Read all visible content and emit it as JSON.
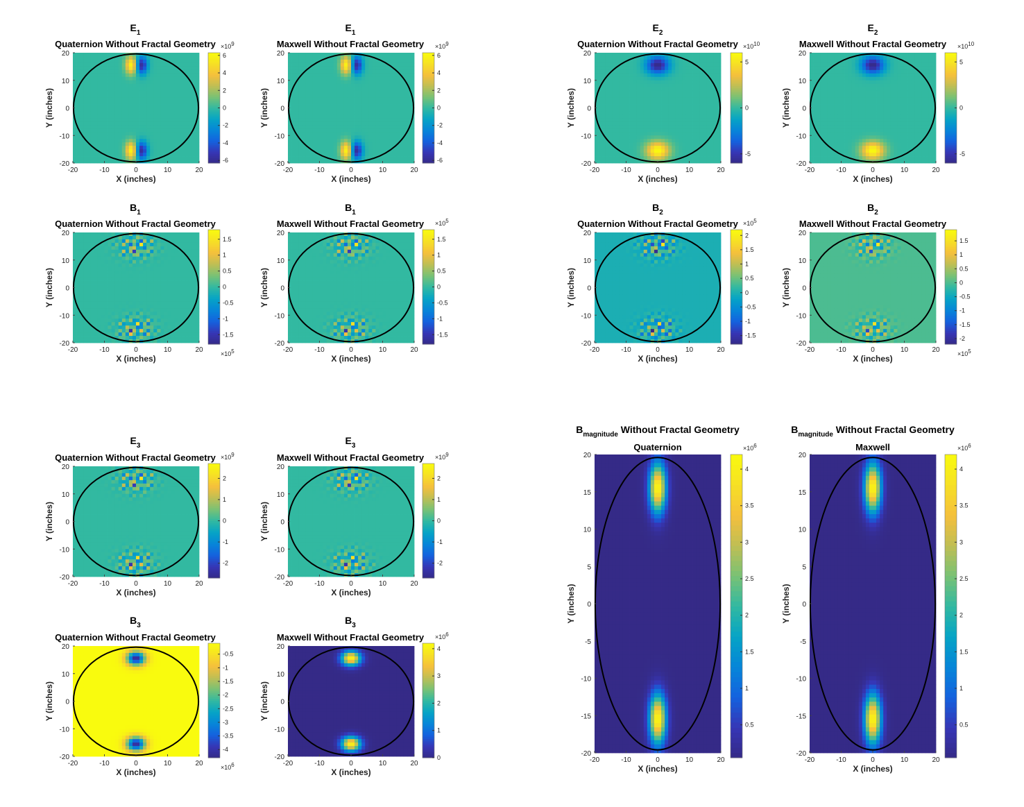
{
  "chart_data": [
    {
      "type": "heatmap",
      "id": "E1-Q",
      "name": "E",
      "sub": "1",
      "line2": "Quaternion Without Fractal Geometry",
      "xlabel": "X (inches)",
      "ylabel": "Y (inches)",
      "xlim": [
        -20,
        20
      ],
      "ylim": [
        -20,
        20
      ],
      "x_ticks": [
        "-20",
        "-10",
        "0",
        "10",
        "20"
      ],
      "y_ticks": [
        "-20",
        "-10",
        "0",
        "10",
        "20"
      ],
      "colorbar": {
        "ticks": [
          "-6",
          "-4",
          "-2",
          "0",
          "2",
          "4",
          "6"
        ],
        "multiplier": "×10",
        "exponent": "9",
        "range": [
          -6.3,
          6.3
        ]
      },
      "field": "dipole-x"
    },
    {
      "type": "heatmap",
      "id": "E1-M",
      "name": "E",
      "sub": "1",
      "line2": "Maxwell Without Fractal Geometry",
      "xlabel": "X (inches)",
      "ylabel": "Y (inches)",
      "xlim": [
        -20,
        20
      ],
      "ylim": [
        -20,
        20
      ],
      "x_ticks": [
        "-20",
        "-10",
        "0",
        "10",
        "20"
      ],
      "y_ticks": [
        "-20",
        "-10",
        "0",
        "10",
        "20"
      ],
      "colorbar": {
        "ticks": [
          "-6",
          "-4",
          "-2",
          "0",
          "2",
          "4",
          "6"
        ],
        "multiplier": "×10",
        "exponent": "9",
        "range": [
          -6.3,
          6.3
        ]
      },
      "field": "dipole-x"
    },
    {
      "type": "heatmap",
      "id": "E2-Q",
      "name": "E",
      "sub": "2",
      "line2": "Quaternion Without Fractal Geometry",
      "xlabel": "X (inches)",
      "ylabel": "Y (inches)",
      "xlim": [
        -20,
        20
      ],
      "ylim": [
        -20,
        20
      ],
      "x_ticks": [
        "-20",
        "-10",
        "0",
        "10",
        "20"
      ],
      "y_ticks": [
        "-20",
        "-10",
        "0",
        "10",
        "20"
      ],
      "colorbar": {
        "ticks": [
          "-5",
          "0",
          "5"
        ],
        "multiplier": "×10",
        "exponent": "10",
        "range": [
          -6,
          6
        ]
      },
      "field": "blob-top-neg"
    },
    {
      "type": "heatmap",
      "id": "E2-M",
      "name": "E",
      "sub": "2",
      "line2": "Maxwell Without Fractal Geometry",
      "xlabel": "X (inches)",
      "ylabel": "Y (inches)",
      "xlim": [
        -20,
        20
      ],
      "ylim": [
        -20,
        20
      ],
      "x_ticks": [
        "-20",
        "-10",
        "0",
        "10",
        "20"
      ],
      "y_ticks": [
        "-20",
        "-10",
        "0",
        "10",
        "20"
      ],
      "colorbar": {
        "ticks": [
          "-5",
          "0",
          "5"
        ],
        "multiplier": "×10",
        "exponent": "10",
        "range": [
          -6,
          6
        ]
      },
      "field": "blob-top-neg"
    },
    {
      "type": "heatmap",
      "id": "B1-Q",
      "name": "B",
      "sub": "1",
      "line2": "Quaternion Without Fractal Geometry",
      "xlabel": "X (inches)",
      "ylabel": "Y (inches)",
      "xlim": [
        -20,
        20
      ],
      "ylim": [
        -20,
        20
      ],
      "x_ticks": [
        "-20",
        "-10",
        "0",
        "10",
        "20"
      ],
      "y_ticks": [
        "-20",
        "-10",
        "0",
        "10",
        "20"
      ],
      "colorbar": {
        "ticks": [
          "-1.5",
          "-1",
          "-0.5",
          "0",
          "0.5",
          "1",
          "1.5"
        ],
        "multiplier": "×10",
        "exponent": "5",
        "exp_pos": "bottom",
        "range": [
          -1.8,
          1.8
        ]
      },
      "field": "speckle"
    },
    {
      "type": "heatmap",
      "id": "B1-M",
      "name": "B",
      "sub": "1",
      "line2": "Maxwell Without Fractal Geometry",
      "xlabel": "X (inches)",
      "ylabel": "Y (inches)",
      "xlim": [
        -20,
        20
      ],
      "ylim": [
        -20,
        20
      ],
      "x_ticks": [
        "-20",
        "-10",
        "0",
        "10",
        "20"
      ],
      "y_ticks": [
        "-20",
        "-10",
        "0",
        "10",
        "20"
      ],
      "colorbar": {
        "ticks": [
          "-1.5",
          "-1",
          "-0.5",
          "0",
          "0.5",
          "1",
          "1.5"
        ],
        "multiplier": "×10",
        "exponent": "5",
        "range": [
          -1.8,
          1.8
        ]
      },
      "field": "speckle"
    },
    {
      "type": "heatmap",
      "id": "B2-Q",
      "name": "B",
      "sub": "2",
      "line2": "Quaternion Without Fractal Geometry",
      "xlabel": "X (inches)",
      "ylabel": "Y (inches)",
      "xlim": [
        -20,
        20
      ],
      "ylim": [
        -20,
        20
      ],
      "x_ticks": [
        "-20",
        "-10",
        "0",
        "10",
        "20"
      ],
      "y_ticks": [
        "-20",
        "-10",
        "0",
        "10",
        "20"
      ],
      "colorbar": {
        "ticks": [
          "-1.5",
          "-1",
          "-0.5",
          "0",
          "0.5",
          "1",
          "1.5",
          "2"
        ],
        "multiplier": "×10",
        "exponent": "5",
        "range": [
          -1.8,
          2.2
        ]
      },
      "field": "speckle"
    },
    {
      "type": "heatmap",
      "id": "B2-M",
      "name": "B",
      "sub": "2",
      "line2": "Maxwell Without Fractal Geometry",
      "xlabel": "X (inches)",
      "ylabel": "Y (inches)",
      "xlim": [
        -20,
        20
      ],
      "ylim": [
        -20,
        20
      ],
      "x_ticks": [
        "-20",
        "-10",
        "0",
        "10",
        "20"
      ],
      "y_ticks": [
        "-20",
        "-10",
        "0",
        "10",
        "20"
      ],
      "colorbar": {
        "ticks": [
          "-2",
          "-1.5",
          "-1",
          "-0.5",
          "0",
          "0.5",
          "1",
          "1.5"
        ],
        "multiplier": "×10",
        "exponent": "5",
        "exp_pos": "bottom",
        "range": [
          -2.2,
          1.9
        ]
      },
      "field": "speckle"
    },
    {
      "type": "heatmap",
      "id": "E3-Q",
      "name": "E",
      "sub": "3",
      "line2": "Quaternion Without Fractal Geometry",
      "xlabel": "X (inches)",
      "ylabel": "Y (inches)",
      "xlim": [
        -20,
        20
      ],
      "ylim": [
        -20,
        20
      ],
      "x_ticks": [
        "-20",
        "-10",
        "0",
        "10",
        "20"
      ],
      "y_ticks": [
        "-20",
        "-10",
        "0",
        "10",
        "20"
      ],
      "colorbar": {
        "ticks": [
          "-2",
          "-1",
          "0",
          "1",
          "2"
        ],
        "multiplier": "×10",
        "exponent": "9",
        "range": [
          -2.7,
          2.7
        ]
      },
      "field": "speckle"
    },
    {
      "type": "heatmap",
      "id": "E3-M",
      "name": "E",
      "sub": "3",
      "line2": "Maxwell Without Fractal Geometry",
      "xlabel": "X (inches)",
      "ylabel": "Y (inches)",
      "xlim": [
        -20,
        20
      ],
      "ylim": [
        -20,
        20
      ],
      "x_ticks": [
        "-20",
        "-10",
        "0",
        "10",
        "20"
      ],
      "y_ticks": [
        "-20",
        "-10",
        "0",
        "10",
        "20"
      ],
      "colorbar": {
        "ticks": [
          "-2",
          "-1",
          "0",
          "1",
          "2"
        ],
        "multiplier": "×10",
        "exponent": "9",
        "range": [
          -2.7,
          2.7
        ]
      },
      "field": "speckle"
    },
    {
      "type": "heatmap",
      "id": "B3-Q",
      "name": "B",
      "sub": "3",
      "line2": "Quaternion Without Fractal Geometry",
      "xlabel": "X (inches)",
      "ylabel": "Y (inches)",
      "xlim": [
        -20,
        20
      ],
      "ylim": [
        -20,
        20
      ],
      "x_ticks": [
        "-20",
        "-10",
        "0",
        "10",
        "20"
      ],
      "y_ticks": [
        "-20",
        "-10",
        "0",
        "10",
        "20"
      ],
      "colorbar": {
        "ticks": [
          "-4",
          "-3.5",
          "-3",
          "-2.5",
          "-2",
          "-1.5",
          "-1",
          "-0.5"
        ],
        "multiplier": "×10",
        "exponent": "6",
        "exp_pos": "bottom",
        "range": [
          -4.3,
          -0.1
        ]
      },
      "field": "b3-neg"
    },
    {
      "type": "heatmap",
      "id": "B3-M",
      "name": "B",
      "sub": "3",
      "line2": "Maxwell Without Fractal Geometry",
      "xlabel": "X (inches)",
      "ylabel": "Y (inches)",
      "xlim": [
        -20,
        20
      ],
      "ylim": [
        -20,
        20
      ],
      "x_ticks": [
        "-20",
        "-10",
        "0",
        "10",
        "20"
      ],
      "y_ticks": [
        "-20",
        "-10",
        "0",
        "10",
        "20"
      ],
      "colorbar": {
        "ticks": [
          "0",
          "1",
          "2",
          "3",
          "4"
        ],
        "multiplier": "×10",
        "exponent": "6",
        "range": [
          0,
          4.2
        ]
      },
      "field": "b3-pos"
    },
    {
      "type": "heatmap",
      "id": "BM-Q",
      "name": "B",
      "sub": "magnitude",
      "name_suffix": " Without Fractal Geometry",
      "line2": "Quaternion",
      "xlabel": "X (inches)",
      "ylabel": "Y (inches)",
      "xlim": [
        -20,
        20
      ],
      "ylim": [
        -20,
        20
      ],
      "x_ticks": [
        "-20",
        "-10",
        "0",
        "10",
        "20"
      ],
      "y_ticks": [
        "-20",
        "-15",
        "-10",
        "-5",
        "0",
        "5",
        "10",
        "15",
        "20"
      ],
      "colorbar": {
        "ticks": [
          "0.5",
          "1",
          "1.5",
          "2",
          "2.5",
          "3",
          "3.5",
          "4"
        ],
        "multiplier": "×10",
        "exponent": "6",
        "range": [
          0.05,
          4.2
        ]
      },
      "field": "mag"
    },
    {
      "type": "heatmap",
      "id": "BM-M",
      "name": "B",
      "sub": "magnitude",
      "name_suffix": " Without Fractal Geometry",
      "line2": "Maxwell",
      "xlabel": "X (inches)",
      "ylabel": "Y (inches)",
      "xlim": [
        -20,
        20
      ],
      "ylim": [
        -20,
        20
      ],
      "x_ticks": [
        "-20",
        "-10",
        "0",
        "10",
        "20"
      ],
      "y_ticks": [
        "-20",
        "-15",
        "-10",
        "-5",
        "0",
        "5",
        "10",
        "15",
        "20"
      ],
      "colorbar": {
        "ticks": [
          "0.5",
          "1",
          "1.5",
          "2",
          "2.5",
          "3",
          "3.5",
          "4"
        ],
        "multiplier": "×10",
        "exponent": "6",
        "range": [
          0.05,
          4.2
        ]
      },
      "field": "mag"
    }
  ]
}
